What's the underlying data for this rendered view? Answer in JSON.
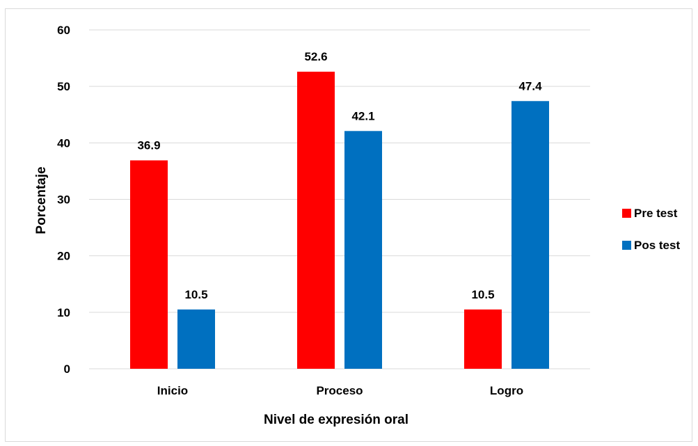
{
  "chart_data": {
    "type": "bar",
    "categories": [
      "Inicio",
      "Proceso",
      "Logro"
    ],
    "series": [
      {
        "name": "Pre test",
        "values": [
          36.9,
          52.6,
          10.5
        ],
        "color": "#ff0000"
      },
      {
        "name": "Pos test",
        "values": [
          10.5,
          42.1,
          47.4
        ],
        "color": "#0070c0"
      }
    ],
    "xlabel": "Nivel de expresión oral",
    "ylabel": "Porcentaje",
    "ylim": [
      0,
      60
    ],
    "yticks": [
      0,
      10,
      20,
      30,
      40,
      50,
      60
    ],
    "grid": true,
    "legend_position": "right",
    "gridline_color": "#d9d9d9"
  }
}
